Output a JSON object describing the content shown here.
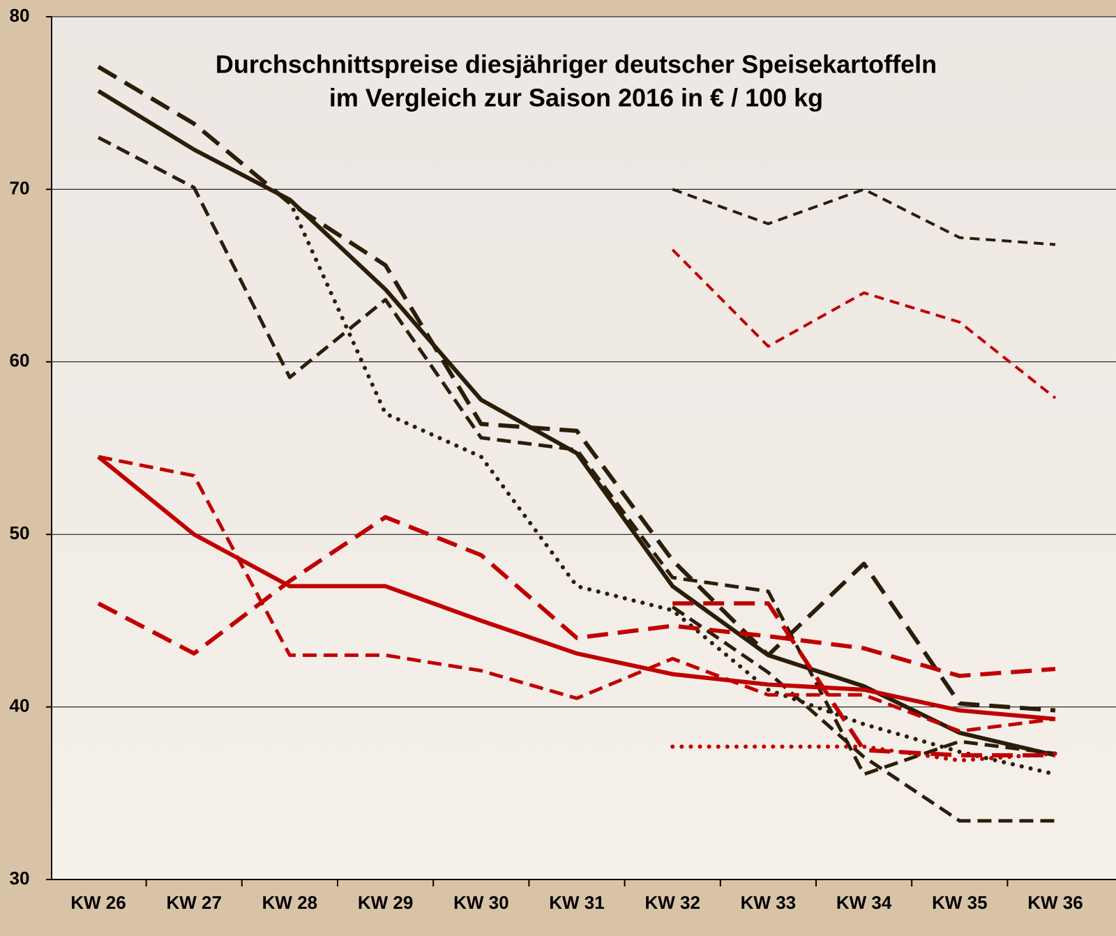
{
  "chart_data": {
    "type": "line",
    "title": "Durchschnittspreise diesjähriger deutscher Speisekartoffeln",
    "subtitle": "im Vergleich zur Saison 2016 in € / 100 kg",
    "categories": [
      "KW 26",
      "KW 27",
      "KW 28",
      "KW 29",
      "KW 30",
      "KW 31",
      "KW 32",
      "KW 33",
      "KW 34",
      "KW 35",
      "KW 36"
    ],
    "ylim": [
      30,
      80
    ],
    "yticks": [
      30,
      40,
      50,
      60,
      70,
      80
    ],
    "grid": true,
    "series": [
      {
        "color": "#2b1d08",
        "style": "solid",
        "values": [
          75.7,
          72.3,
          69.4,
          64.2,
          57.8,
          54.7,
          47.0,
          43.0,
          41.2,
          38.5,
          37.2
        ]
      },
      {
        "color": "#2b1d08",
        "style": "long-dash",
        "values": [
          77.1,
          73.8,
          69.2,
          65.6,
          56.4,
          56.0,
          48.5,
          43.0,
          48.3,
          40.2,
          39.8
        ]
      },
      {
        "color": "#2b1d08",
        "style": "dash",
        "values": [
          73.0,
          70.1,
          59.1,
          63.6,
          55.6,
          54.9,
          47.5,
          46.7,
          36.1,
          38.0,
          37.3
        ]
      },
      {
        "color": "#2b1d08",
        "style": "dash",
        "values": [
          null,
          null,
          null,
          null,
          null,
          null,
          45.8,
          42.0,
          37.1,
          33.4,
          33.4
        ]
      },
      {
        "color": "#2b1d08",
        "style": "dot",
        "values": [
          null,
          null,
          69.3,
          57.0,
          54.5,
          47.0,
          45.6,
          41.0,
          39.0,
          37.4,
          36.1
        ]
      },
      {
        "color": "#2b1d08",
        "style": "short-dash",
        "values": [
          null,
          null,
          null,
          null,
          null,
          null,
          70.0,
          68.0,
          70.0,
          67.2,
          66.8
        ]
      },
      {
        "color": "#c00000",
        "style": "short-dash",
        "values": [
          null,
          null,
          null,
          null,
          null,
          null,
          66.5,
          60.9,
          64.0,
          62.3,
          57.9
        ]
      },
      {
        "color": "#c00000",
        "style": "solid",
        "values": [
          54.5,
          50.0,
          47.0,
          47.0,
          45.0,
          43.1,
          41.9,
          41.3,
          41.0,
          39.8,
          39.3
        ]
      },
      {
        "color": "#c00000",
        "style": "dash",
        "values": [
          54.5,
          53.4,
          43.0,
          43.0,
          42.1,
          40.5,
          42.8,
          40.7,
          40.7,
          38.6,
          39.3
        ]
      },
      {
        "color": "#c00000",
        "style": "long-dash",
        "values": [
          46.0,
          43.1,
          47.3,
          51.0,
          48.8,
          44.0,
          44.7,
          44.1,
          43.4,
          41.8,
          42.2
        ]
      },
      {
        "color": "#c00000",
        "style": "long-dash",
        "values": [
          null,
          null,
          null,
          null,
          null,
          null,
          46.0,
          46.0,
          37.5,
          37.2,
          37.2
        ]
      },
      {
        "color": "#c00000",
        "style": "dot",
        "values": [
          null,
          null,
          null,
          null,
          null,
          null,
          37.7,
          37.7,
          37.7,
          36.9,
          37.3
        ]
      }
    ]
  }
}
